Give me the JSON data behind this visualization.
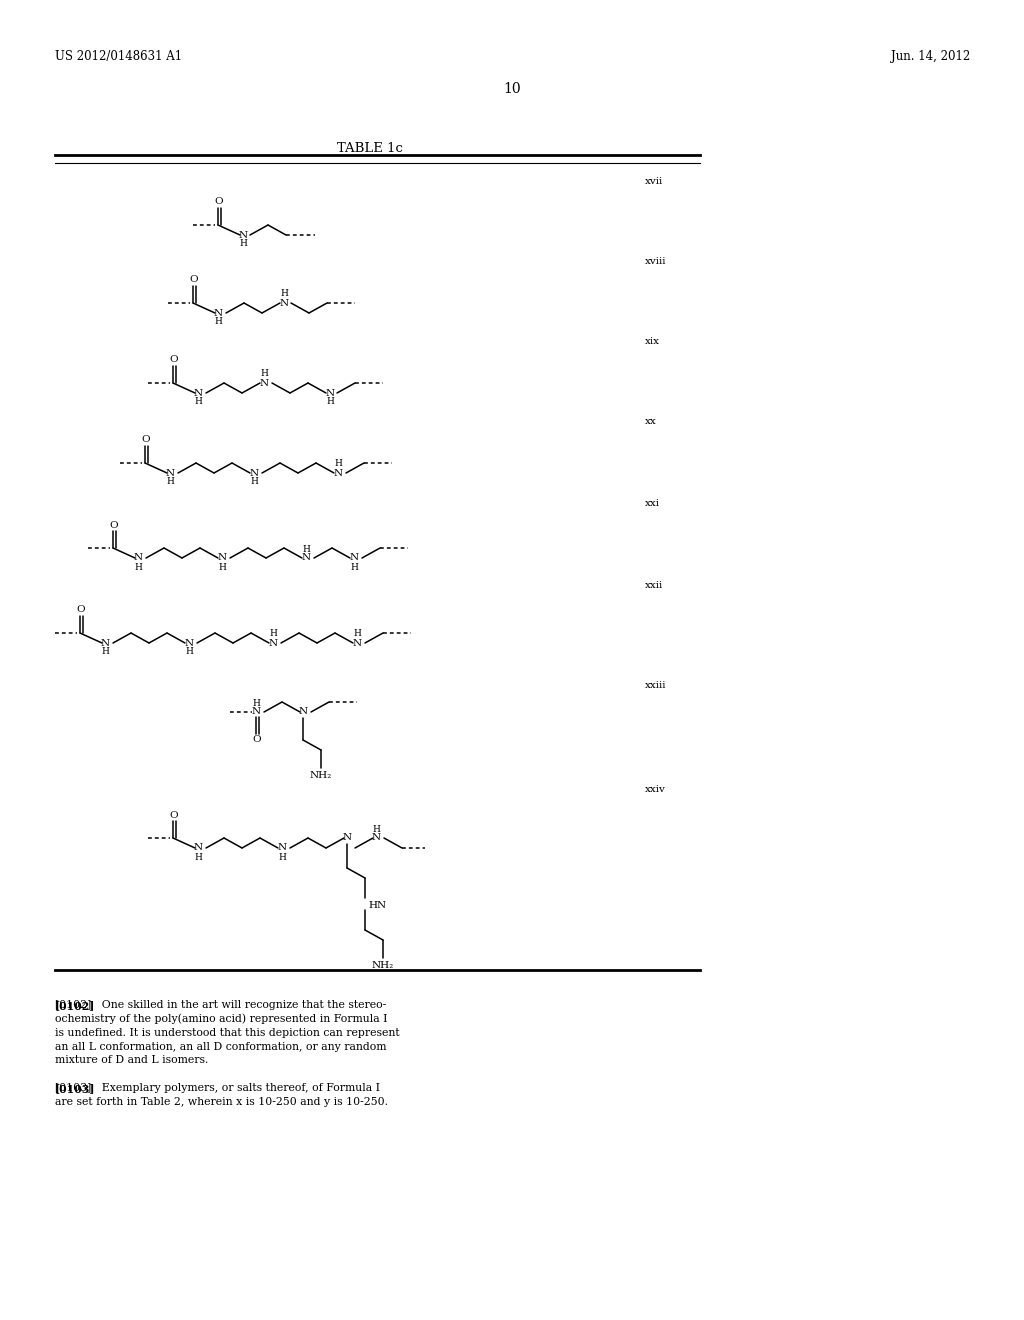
{
  "page_header_left": "US 2012/0148631 A1",
  "page_header_right": "Jun. 14, 2012",
  "page_number": "10",
  "table_title": "TABLE 1c",
  "background_color": "#ffffff",
  "text_color": "#000000",
  "line_color": "#000000",
  "structure_labels": [
    "xvii",
    "xviii",
    "xix",
    "xx",
    "xxi",
    "xxii",
    "xxiii",
    "xxiv"
  ],
  "footer_text_1": "[0102]   One skilled in the art will recognize that the stereo-\nochemistry of the poly(amino acid) represented in Formula I\nis undefined. It is understood that this depiction can represent\nan all L conformation, an all D conformation, or any random\nmixture of D and L isomers.",
  "footer_text_2": "[0103]   Exemplary polymers, or salts thereof, of Formula I\nare set forth in Table 2, wherein x is 10-250 and y is 10-250."
}
